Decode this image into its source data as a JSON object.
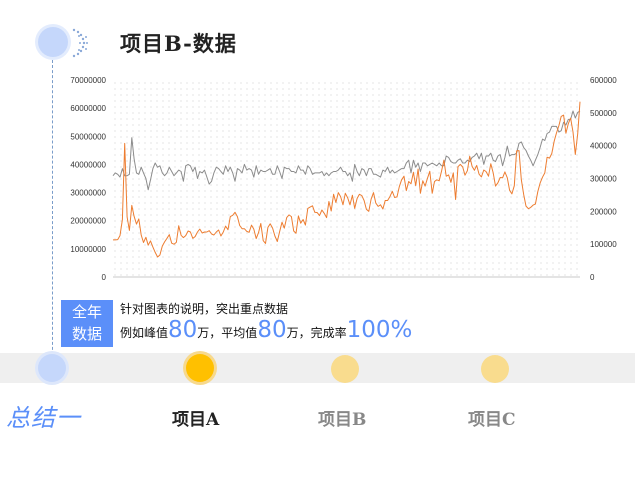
{
  "header": {
    "title": "项目B-数据"
  },
  "summary": {
    "box_label_1": "全年",
    "box_label_2": "数据",
    "line1": "针对图表的说明，突出重点数据",
    "line2_prefix": "例如峰值",
    "peak_value": "80",
    "peak_unit": "万，平均值",
    "avg_value": "80",
    "avg_unit": "万，完成率",
    "rate_value": "100%"
  },
  "timeline": {
    "summary_label": "总结一",
    "items": [
      {
        "label": "项目A",
        "active": true
      },
      {
        "label": "项目B",
        "active": false
      },
      {
        "label": "项目C",
        "active": false
      }
    ]
  },
  "colors": {
    "accent": "#5b8ff9",
    "series_gray": "#8c8c8c",
    "series_orange": "#ed7d31",
    "active_node": "#ffc000",
    "inactive_node": "#f9dc8e"
  },
  "chart_data": {
    "type": "line",
    "grid": true,
    "legend": "none",
    "x_points": 200,
    "ylim_left": [
      0,
      70000000
    ],
    "ylim_right": [
      0,
      600000
    ],
    "y_ticks_left": [
      "0",
      "10000000",
      "20000000",
      "30000000",
      "40000000",
      "50000000",
      "60000000",
      "70000000"
    ],
    "y_ticks_right": [
      "0",
      "100000",
      "200000",
      "300000",
      "400000",
      "500000",
      "600000"
    ],
    "series": [
      {
        "axis": "left",
        "color": "#8c8c8c",
        "values": [
          36000000,
          37000000,
          36500000,
          35500000,
          38500000,
          36000000,
          36000000,
          36500000,
          49500000,
          42000000,
          37000000,
          36500000,
          39000000,
          37000000,
          35000000,
          31000000,
          34500000,
          38500000,
          40500000,
          39000000,
          39500000,
          37000000,
          36000000,
          37000000,
          39000000,
          37500000,
          36000000,
          37000000,
          38000000,
          37500000,
          34000000,
          39500000,
          40000000,
          39500000,
          37500000,
          39000000,
          35000000,
          37500000,
          37000000,
          38000000,
          35500000,
          33000000,
          34000000,
          37000000,
          39000000,
          38500000,
          37500000,
          36500000,
          39500000,
          37500000,
          39000000,
          37000000,
          34000000,
          38500000,
          38000000,
          37000000,
          40000000,
          38000000,
          38500000,
          38000000,
          35500000,
          39500000,
          36500000,
          38000000,
          37500000,
          37500000,
          38000000,
          38500000,
          36500000,
          36500000,
          39500000,
          37500000,
          35000000,
          39000000,
          38500000,
          38500000,
          37500000,
          37500000,
          37000000,
          39500000,
          38000000,
          38000000,
          36500000,
          39500000,
          38500000,
          36500000,
          37000000,
          37000000,
          37000000,
          37500000,
          36000000,
          37000000,
          36000000,
          37000000,
          37500000,
          37500000,
          38000000,
          39000000,
          37500000,
          37500000,
          36000000,
          37000000,
          34000000,
          40000000,
          37500000,
          36000000,
          38500000,
          38000000,
          36000000,
          38500000,
          38500000,
          36500000,
          36500000,
          36000000,
          35500000,
          38000000,
          37500000,
          39000000,
          37000000,
          38000000,
          37000000,
          37500000,
          38000000,
          38500000,
          38500000,
          40500000,
          41500000,
          37000000,
          41500000,
          39000000,
          40500000,
          37500000,
          40500000,
          40500000,
          39500000,
          40000000,
          40500000,
          40000000,
          39500000,
          40500000,
          39500000,
          39500000,
          43000000,
          42500000,
          41000000,
          40500000,
          40500000,
          41500000,
          42000000,
          40500000,
          40500000,
          41500000,
          41000000,
          42500000,
          43000000,
          44000000,
          42000000,
          44000000,
          40000000,
          43000000,
          43000000,
          44000000,
          41500000,
          41000000,
          43000000,
          43500000,
          39500000,
          42500000,
          46500000,
          43000000,
          43500000,
          43500000,
          44000000,
          47500000,
          48000000,
          46000000,
          45000000,
          43000000,
          41500000,
          39500000,
          41500000,
          43500000,
          46000000,
          49000000,
          48500000,
          51000000,
          51500000,
          53500000,
          53500000,
          53500000,
          51500000,
          52000000,
          55000000,
          54000000,
          56000000,
          56000000,
          59000000,
          56500000,
          58500000,
          59000000
        ],
        "name": ""
      },
      {
        "axis": "right",
        "color": "#ed7d31",
        "values": [
          113000,
          113000,
          114000,
          126000,
          175000,
          407000,
          183000,
          142000,
          218000,
          185000,
          161000,
          177000,
          128000,
          105000,
          121000,
          97000,
          110000,
          91000,
          75000,
          61000,
          67000,
          94000,
          107000,
          118000,
          129000,
          103000,
          100000,
          106000,
          156000,
          127000,
          120000,
          126000,
          140000,
          137000,
          118000,
          123000,
          137000,
          146000,
          134000,
          137000,
          137000,
          141000,
          131000,
          128000,
          137000,
          143000,
          125000,
          137000,
          155000,
          144000,
          184000,
          188000,
          197000,
          184000,
          157000,
          147000,
          147000,
          139000,
          136000,
          158000,
          146000,
          117000,
          135000,
          163000,
          111000,
          102000,
          151000,
          162000,
          149000,
          125000,
          108000,
          138000,
          167000,
          149000,
          181000,
          189000,
          184000,
          140000,
          133000,
          186000,
          164000,
          175000,
          158000,
          209000,
          213000,
          217000,
          197000,
          196000,
          187000,
          204000,
          194000,
          181000,
          230000,
          201000,
          252000,
          227000,
          257000,
          245000,
          220000,
          255000,
          241000,
          220000,
          249000,
          209000,
          239000,
          252000,
          248000,
          233000,
          206000,
          200000,
          237000,
          257000,
          225000,
          215000,
          220000,
          207000,
          233000,
          233000,
          245000,
          261000,
          242000,
          244000,
          275000,
          296000,
          307000,
          263000,
          291000,
          284000,
          319000,
          278000,
          329000,
          255000,
          293000,
          277000,
          301000,
          322000,
          255000,
          291000,
          296000,
          293000,
          322000,
          356000,
          307000,
          311000,
          288000,
          317000,
          236000,
          336000,
          343000,
          335000,
          310000,
          324000,
          368000,
          337000,
          325000,
          340000,
          313000,
          305000,
          326000,
          321000,
          307000,
          345000,
          317000,
          277000,
          287000,
          303000,
          302000,
          320000,
          302000,
          264000,
          253000,
          278000,
          384000,
          385000,
          297000,
          251000,
          216000,
          208000,
          212000,
          219000,
          222000,
          260000,
          286000,
          304000,
          317000,
          365000,
          362000,
          376000,
          414000,
          439000,
          461000,
          489000,
          493000,
          438000,
          467000,
          484000,
          442000,
          373000,
          436000,
          534000
        ]
      }
    ]
  }
}
